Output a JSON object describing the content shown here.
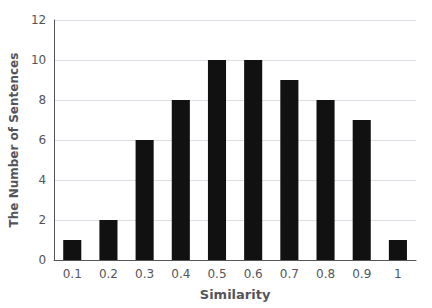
{
  "chart_data": {
    "type": "bar",
    "xlabel": "Similarity",
    "ylabel": "The Number of Sentences",
    "categories": [
      "0.1",
      "0.2",
      "0.3",
      "0.4",
      "0.5",
      "0.6",
      "0.7",
      "0.8",
      "0.9",
      "1"
    ],
    "values": [
      1,
      2,
      6,
      8,
      10,
      10,
      9,
      8,
      7,
      1
    ],
    "color": "#111111",
    "ylim": [
      0,
      12
    ],
    "yticks": [
      0,
      2,
      4,
      6,
      8,
      10,
      12
    ],
    "grid": true
  }
}
